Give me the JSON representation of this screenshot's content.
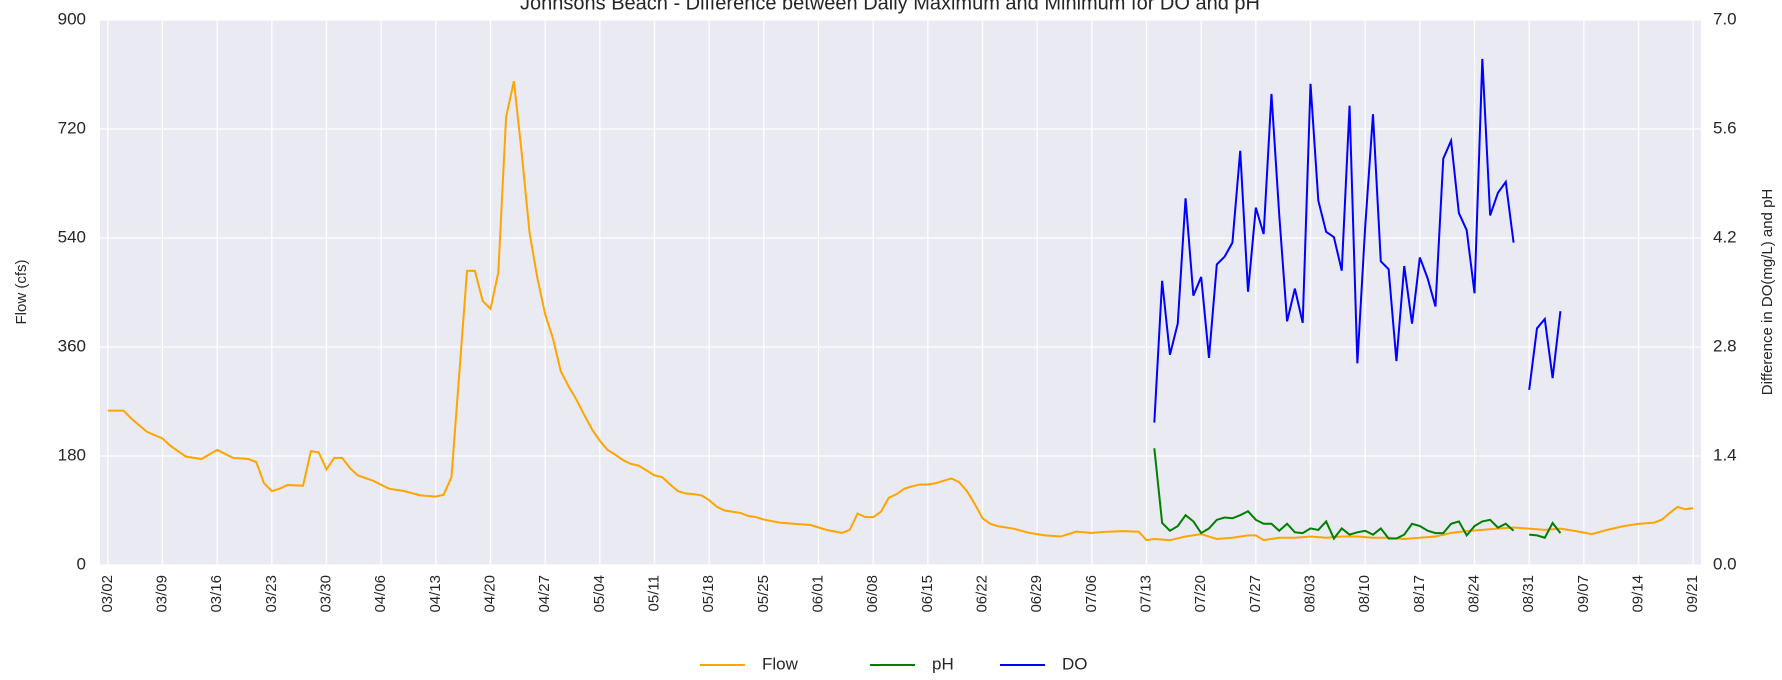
{
  "chart_data": {
    "type": "line",
    "title": "Johnsons Beach - Difference between Daily Maximum and Minimum for DO and pH",
    "ylabel": "Flow (cfs)",
    "y2label": "Difference in DO(mg/L) and pH",
    "xlim": [
      "03/01",
      "09/22"
    ],
    "xticks": [
      "03/02",
      "03/09",
      "03/16",
      "03/23",
      "03/30",
      "04/06",
      "04/13",
      "04/20",
      "04/27",
      "05/04",
      "05/11",
      "05/18",
      "05/25",
      "06/01",
      "06/08",
      "06/15",
      "06/22",
      "06/29",
      "07/06",
      "07/13",
      "07/20",
      "07/27",
      "08/03",
      "08/10",
      "08/17",
      "08/24",
      "08/31",
      "09/07",
      "09/14",
      "09/21"
    ],
    "ylim": [
      0,
      900
    ],
    "yticks": [
      0,
      180,
      360,
      540,
      720,
      900
    ],
    "y2lim": [
      0,
      7
    ],
    "y2ticks": [
      {
        "value": 0,
        "label": "0.0"
      },
      1.4,
      2.8,
      4.2,
      5.6,
      {
        "value": 7,
        "label": "7.0"
      }
    ],
    "grid": true,
    "legend": "bottom",
    "series": [
      {
        "name": "Flow",
        "color": "#ffa500",
        "x": [
          "03/02",
          "03/04",
          "03/05",
          "03/07",
          "03/09",
          "03/10",
          "03/12",
          "03/14",
          "03/16",
          "03/18",
          "03/20",
          "03/21",
          "03/22",
          "03/23",
          "03/24",
          "03/25",
          "03/27",
          "03/28",
          "03/29",
          "03/30",
          "03/31",
          "04/01",
          "04/02",
          "04/03",
          "04/05",
          "04/07",
          "04/09",
          "04/11",
          "04/13",
          "04/14",
          "04/15",
          "04/17",
          "04/18",
          "04/19",
          "04/20",
          "04/21",
          "04/22",
          "04/23",
          "04/24",
          "04/25",
          "04/26",
          "04/27",
          "04/28",
          "04/29",
          "04/30",
          "05/01",
          "05/02",
          "05/03",
          "05/04",
          "05/05",
          "05/06",
          "05/07",
          "05/08",
          "05/09",
          "05/10",
          "05/11",
          "05/12",
          "05/13",
          "05/14",
          "05/15",
          "05/16",
          "05/17",
          "05/18",
          "05/19",
          "05/20",
          "05/21",
          "05/22",
          "05/23",
          "05/24",
          "05/25",
          "05/27",
          "05/29",
          "05/31",
          "06/02",
          "06/04",
          "06/05",
          "06/06",
          "06/07",
          "06/08",
          "06/09",
          "06/10",
          "06/11",
          "06/12",
          "06/13",
          "06/14",
          "06/15",
          "06/16",
          "06/17",
          "06/18",
          "06/19",
          "06/20",
          "06/21",
          "06/22",
          "06/23",
          "06/24",
          "06/26",
          "06/28",
          "06/30",
          "07/02",
          "07/04",
          "07/06",
          "07/08",
          "07/10",
          "07/12",
          "07/13",
          "07/14",
          "07/16",
          "07/18",
          "07/20",
          "07/22",
          "07/24",
          "07/26",
          "07/27",
          "07/28",
          "07/30",
          "08/01",
          "08/03",
          "08/05",
          "08/07",
          "08/09",
          "08/11",
          "08/13",
          "08/15",
          "08/17",
          "08/19",
          "08/21",
          "08/23",
          "08/25",
          "08/27",
          "08/29",
          "08/31",
          "09/02",
          "09/04",
          "09/06",
          "09/08",
          "09/10",
          "09/12",
          "09/14",
          "09/16",
          "09/17",
          "09/18",
          "09/19",
          "09/20",
          "09/21"
        ],
        "values": [
          255,
          255,
          242,
          220,
          209,
          197,
          179,
          175,
          190,
          177,
          175,
          170,
          135,
          122,
          126,
          132,
          131,
          188,
          186,
          158,
          177,
          177,
          160,
          148,
          139,
          126,
          122,
          115,
          113,
          116,
          145,
          486,
          486,
          436,
          423,
          483,
          740,
          799,
          680,
          549,
          474,
          414,
          374,
          320,
          295,
          273,
          248,
          224,
          205,
          190,
          182,
          173,
          167,
          164,
          156,
          148,
          145,
          133,
          122,
          118,
          117,
          115,
          107,
          96,
          90,
          88,
          86,
          81,
          79,
          75,
          70,
          68,
          66,
          58,
          53,
          58,
          85,
          79,
          79,
          88,
          111,
          117,
          126,
          130,
          133,
          133,
          135,
          139,
          143,
          137,
          122,
          101,
          77,
          68,
          64,
          60,
          53,
          49,
          47,
          55,
          53,
          55,
          56,
          55,
          41,
          43,
          41,
          47,
          51,
          43,
          45,
          49,
          49,
          41,
          45,
          45,
          47,
          45,
          47,
          47,
          45,
          45,
          43,
          45,
          47,
          53,
          56,
          58,
          60,
          62,
          60,
          58,
          60,
          56,
          51,
          58,
          64,
          68,
          70,
          75,
          86,
          96,
          92,
          94
        ]
      },
      {
        "name": "pH",
        "color": "#008000",
        "axis": "y2",
        "x": [
          "07/14",
          "07/15",
          "07/16",
          "07/17",
          "07/18",
          "07/19",
          "07/20",
          "07/21",
          "07/22",
          "07/23",
          "07/24",
          "07/25",
          "07/26",
          "07/27",
          "07/28",
          "07/29",
          "07/30",
          "07/31",
          "08/01",
          "08/02",
          "08/03",
          "08/04",
          "08/05",
          "08/06",
          "08/07",
          "08/08",
          "08/09",
          "08/10",
          "08/11",
          "08/12",
          "08/13",
          "08/14",
          "08/15",
          "08/16",
          "08/17",
          "08/18",
          "08/19",
          "08/20",
          "08/21",
          "08/22",
          "08/23",
          "08/24",
          "08/25",
          "08/26",
          "08/27",
          "08/28",
          "08/29",
          "08/30",
          "08/31",
          "09/01",
          "09/02",
          "09/03",
          "09/04"
        ],
        "values": [
          1.5,
          0.54,
          0.44,
          0.5,
          0.64,
          0.56,
          0.41,
          0.47,
          0.58,
          0.61,
          0.6,
          0.64,
          0.69,
          0.58,
          0.53,
          0.53,
          0.44,
          0.53,
          0.42,
          0.41,
          0.47,
          0.45,
          0.56,
          0.34,
          0.47,
          0.39,
          0.42,
          0.44,
          0.39,
          0.47,
          0.34,
          0.34,
          0.39,
          0.53,
          0.5,
          0.44,
          0.41,
          0.41,
          0.53,
          0.56,
          0.38,
          0.5,
          0.56,
          0.58,
          0.48,
          0.53,
          0.44,
          null,
          0.39,
          0.38,
          0.35,
          0.54,
          0.41
        ]
      },
      {
        "name": "DO",
        "color": "#0000ff",
        "axis": "y2",
        "x": [
          "07/14",
          "07/15",
          "07/16",
          "07/17",
          "07/18",
          "07/19",
          "07/20",
          "07/21",
          "07/22",
          "07/23",
          "07/24",
          "07/25",
          "07/26",
          "07/27",
          "07/28",
          "07/29",
          "07/30",
          "07/31",
          "08/01",
          "08/02",
          "08/03",
          "08/04",
          "08/05",
          "08/06",
          "08/07",
          "08/08",
          "08/09",
          "08/10",
          "08/11",
          "08/12",
          "08/13",
          "08/14",
          "08/15",
          "08/16",
          "08/17",
          "08/18",
          "08/19",
          "08/20",
          "08/21",
          "08/22",
          "08/23",
          "08/24",
          "08/25",
          "08/26",
          "08/27",
          "08/28",
          "08/29",
          "08/30",
          "08/31",
          "09/01",
          "09/02",
          "09/03",
          "09/04"
        ],
        "values": [
          1.83,
          3.65,
          2.7,
          3.1,
          4.71,
          3.46,
          3.7,
          2.66,
          3.86,
          3.96,
          4.14,
          5.32,
          3.51,
          4.59,
          4.25,
          6.05,
          4.49,
          3.13,
          3.55,
          3.11,
          6.18,
          4.68,
          4.28,
          4.21,
          3.78,
          5.9,
          2.59,
          4.34,
          5.79,
          3.9,
          3.8,
          2.62,
          3.84,
          3.1,
          3.95,
          3.68,
          3.32,
          5.22,
          5.45,
          4.52,
          4.3,
          3.49,
          6.5,
          4.49,
          4.78,
          4.92,
          4.14,
          null,
          2.25,
          3.04,
          3.16,
          2.4,
          3.26
        ]
      }
    ]
  }
}
